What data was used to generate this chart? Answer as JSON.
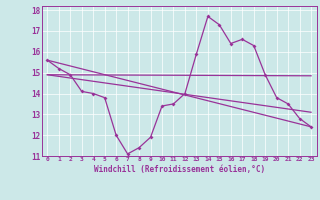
{
  "background_color": "#cce8e8",
  "line_color": "#993399",
  "xlim": [
    -0.5,
    23.5
  ],
  "ylim": [
    11,
    18.2
  ],
  "xticks": [
    0,
    1,
    2,
    3,
    4,
    5,
    6,
    7,
    8,
    9,
    10,
    11,
    12,
    13,
    14,
    15,
    16,
    17,
    18,
    19,
    20,
    21,
    22,
    23
  ],
  "yticks": [
    11,
    12,
    13,
    14,
    15,
    16,
    17,
    18
  ],
  "series1_x": [
    0,
    1,
    2,
    3,
    4,
    5,
    6,
    7,
    8,
    9,
    10,
    11,
    12,
    13,
    14,
    15,
    16,
    17,
    18,
    19,
    20,
    21,
    22,
    23
  ],
  "series1_y": [
    15.6,
    15.2,
    14.9,
    14.1,
    14.0,
    13.8,
    12.0,
    11.1,
    11.4,
    11.9,
    13.4,
    13.5,
    14.0,
    15.9,
    17.7,
    17.3,
    16.4,
    16.6,
    16.3,
    14.9,
    13.8,
    13.5,
    12.8,
    12.4
  ],
  "line2_x": [
    0,
    23
  ],
  "line2_y": [
    15.6,
    12.4
  ],
  "line3_x": [
    0,
    23
  ],
  "line3_y": [
    14.9,
    14.85
  ],
  "line4_x": [
    0,
    23
  ],
  "line4_y": [
    14.9,
    13.1
  ],
  "xlabel": "Windchill (Refroidissement éolien,°C)"
}
